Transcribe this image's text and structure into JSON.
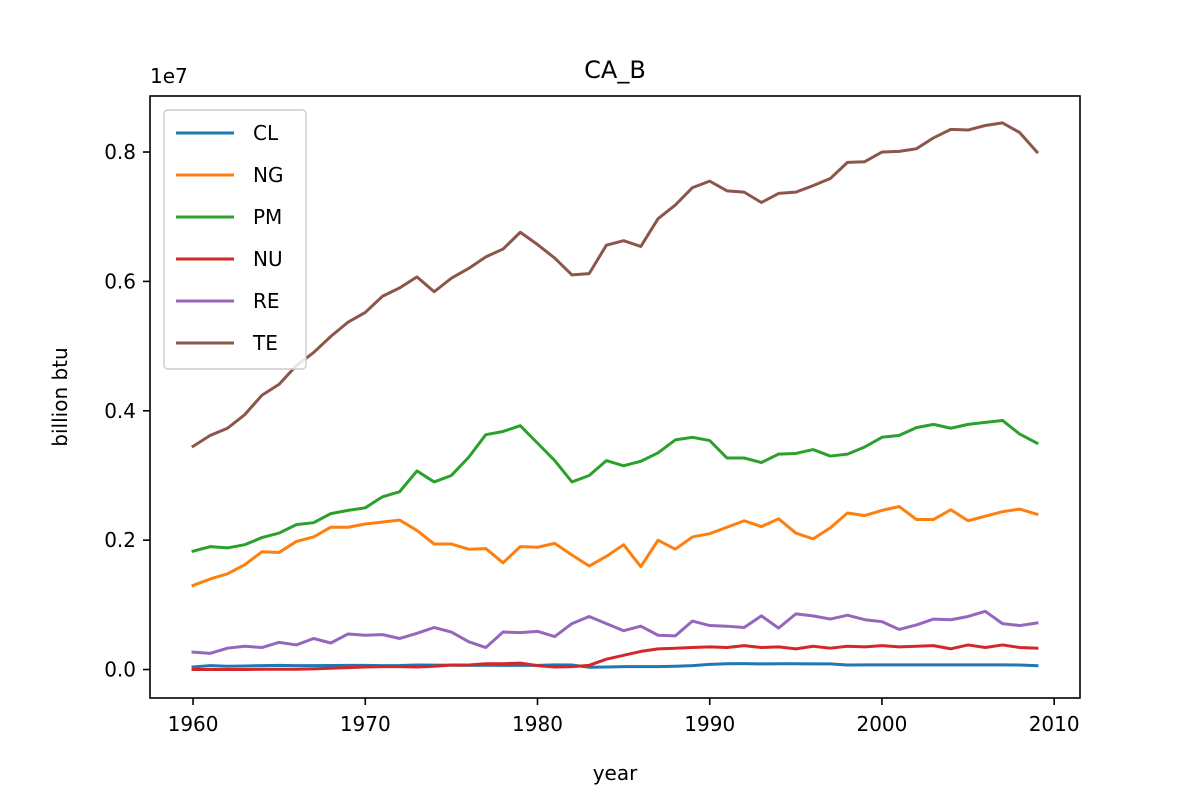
{
  "chart_data": {
    "type": "line",
    "title": "CA_B",
    "xlabel": "year",
    "ylabel": "billion btu",
    "y_scale_label": "1e7",
    "xlim": [
      1957.5,
      2011.5
    ],
    "ylim": [
      -0.044,
      0.8866
    ],
    "xticks": [
      1960,
      1970,
      1980,
      1990,
      2000,
      2010
    ],
    "xtick_labels": [
      "1960",
      "1970",
      "1980",
      "1990",
      "2000",
      "2010"
    ],
    "yticks": [
      0.0,
      0.2,
      0.4,
      0.6,
      0.8
    ],
    "ytick_labels": [
      "0.0",
      "0.2",
      "0.4",
      "0.6",
      "0.8"
    ],
    "grid": false,
    "legend_position": "top-left",
    "x": [
      1960,
      1961,
      1962,
      1963,
      1964,
      1965,
      1966,
      1967,
      1968,
      1969,
      1970,
      1971,
      1972,
      1973,
      1974,
      1975,
      1976,
      1977,
      1978,
      1979,
      1980,
      1981,
      1982,
      1983,
      1984,
      1985,
      1986,
      1987,
      1988,
      1989,
      1990,
      1991,
      1992,
      1993,
      1994,
      1995,
      1996,
      1997,
      1998,
      1999,
      2000,
      2001,
      2002,
      2003,
      2004,
      2005,
      2006,
      2007,
      2008,
      2009
    ],
    "series": [
      {
        "name": "CL",
        "color": "#1f77b4",
        "values": [
          0.004,
          0.006,
          0.005,
          0.0055,
          0.006,
          0.0065,
          0.006,
          0.006,
          0.0062,
          0.0064,
          0.0065,
          0.006,
          0.0062,
          0.007,
          0.0068,
          0.0066,
          0.0064,
          0.0066,
          0.0065,
          0.0064,
          0.0065,
          0.0072,
          0.007,
          0.0035,
          0.004,
          0.0045,
          0.0045,
          0.0045,
          0.005,
          0.006,
          0.008,
          0.009,
          0.0092,
          0.0088,
          0.009,
          0.009,
          0.0088,
          0.0088,
          0.007,
          0.0072,
          0.0072,
          0.0072,
          0.0072,
          0.0072,
          0.0072,
          0.0072,
          0.0072,
          0.0072,
          0.007,
          0.006
        ]
      },
      {
        "name": "NG",
        "color": "#ff7f0e",
        "values": [
          0.13,
          0.14,
          0.148,
          0.162,
          0.182,
          0.181,
          0.198,
          0.205,
          0.22,
          0.22,
          0.225,
          0.228,
          0.231,
          0.215,
          0.194,
          0.194,
          0.186,
          0.187,
          0.165,
          0.19,
          0.189,
          0.195,
          0.177,
          0.16,
          0.175,
          0.193,
          0.159,
          0.2,
          0.186,
          0.205,
          0.21,
          0.22,
          0.23,
          0.221,
          0.233,
          0.211,
          0.202,
          0.219,
          0.242,
          0.238,
          0.246,
          0.252,
          0.232,
          0.232,
          0.247,
          0.23,
          0.237,
          0.244,
          0.248,
          0.24
        ]
      },
      {
        "name": "PM",
        "color": "#2ca02c",
        "values": [
          0.183,
          0.19,
          0.188,
          0.193,
          0.204,
          0.211,
          0.224,
          0.227,
          0.241,
          0.246,
          0.25,
          0.267,
          0.275,
          0.307,
          0.29,
          0.3,
          0.328,
          0.363,
          0.368,
          0.377,
          0.35,
          0.323,
          0.29,
          0.3,
          0.323,
          0.315,
          0.322,
          0.335,
          0.355,
          0.359,
          0.354,
          0.327,
          0.327,
          0.32,
          0.333,
          0.334,
          0.34,
          0.33,
          0.333,
          0.344,
          0.359,
          0.362,
          0.374,
          0.379,
          0.373,
          0.379,
          0.382,
          0.385,
          0.364,
          0.35
        ]
      },
      {
        "name": "NU",
        "color": "#d62728",
        "values": [
          0.0,
          0.0,
          0.0,
          0.0,
          0.0005,
          0.0005,
          0.0005,
          0.001,
          0.002,
          0.003,
          0.004,
          0.0045,
          0.0045,
          0.004,
          0.005,
          0.007,
          0.007,
          0.009,
          0.009,
          0.01,
          0.006,
          0.004,
          0.0045,
          0.0065,
          0.016,
          0.022,
          0.028,
          0.032,
          0.033,
          0.034,
          0.035,
          0.034,
          0.037,
          0.034,
          0.035,
          0.032,
          0.036,
          0.033,
          0.036,
          0.035,
          0.037,
          0.035,
          0.036,
          0.037,
          0.032,
          0.038,
          0.034,
          0.038,
          0.034,
          0.033
        ]
      },
      {
        "name": "RE",
        "color": "#9467bd",
        "values": [
          0.027,
          0.025,
          0.033,
          0.036,
          0.034,
          0.042,
          0.038,
          0.048,
          0.041,
          0.055,
          0.053,
          0.054,
          0.048,
          0.056,
          0.065,
          0.058,
          0.043,
          0.034,
          0.058,
          0.057,
          0.059,
          0.051,
          0.071,
          0.082,
          0.071,
          0.06,
          0.067,
          0.053,
          0.052,
          0.075,
          0.068,
          0.067,
          0.065,
          0.083,
          0.064,
          0.086,
          0.083,
          0.078,
          0.084,
          0.077,
          0.074,
          0.062,
          0.069,
          0.078,
          0.077,
          0.082,
          0.09,
          0.071,
          0.068,
          0.072
        ]
      },
      {
        "name": "TE",
        "color": "#8c564b",
        "values": [
          0.345,
          0.362,
          0.373,
          0.394,
          0.424,
          0.441,
          0.47,
          0.49,
          0.515,
          0.537,
          0.552,
          0.577,
          0.59,
          0.607,
          0.584,
          0.605,
          0.62,
          0.638,
          0.65,
          0.676,
          0.657,
          0.636,
          0.61,
          0.612,
          0.656,
          0.663,
          0.654,
          0.697,
          0.718,
          0.745,
          0.755,
          0.74,
          0.738,
          0.722,
          0.736,
          0.738,
          0.748,
          0.759,
          0.784,
          0.785,
          0.8,
          0.801,
          0.805,
          0.822,
          0.835,
          0.834,
          0.841,
          0.845,
          0.83,
          0.8
        ]
      }
    ]
  }
}
